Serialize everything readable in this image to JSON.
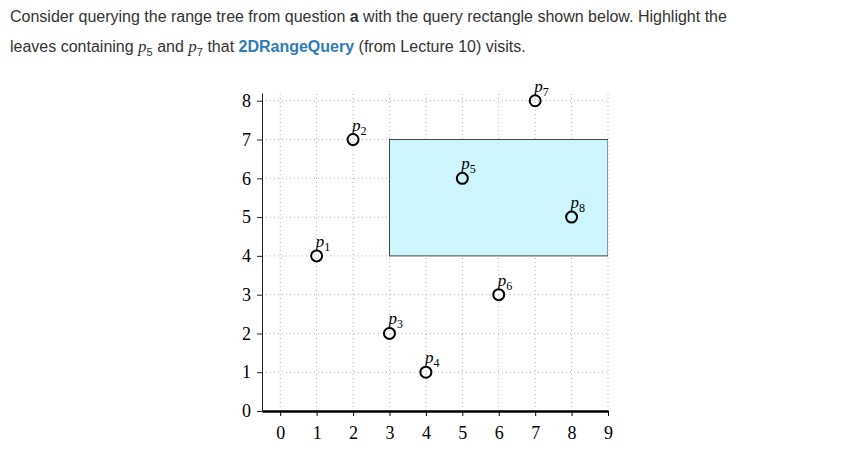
{
  "question": {
    "lines": [
      [
        {
          "text": "Consider querying the range tree from question ",
          "style": "plain"
        },
        {
          "text": "a",
          "style": "bold"
        },
        {
          "text": " with the query rectangle shown below. Highlight the",
          "style": "plain"
        }
      ],
      [
        {
          "text": "leaves containing ",
          "style": "plain"
        },
        {
          "text": "p5",
          "style": "math"
        },
        {
          "text": " and ",
          "style": "plain"
        },
        {
          "text": "p7",
          "style": "math"
        },
        {
          "text": " that ",
          "style": "plain"
        },
        {
          "text": "2DRangeQuery",
          "style": "link"
        },
        {
          "text": " (from Lecture 10) visits.",
          "style": "plain"
        }
      ]
    ]
  },
  "chart_data": {
    "type": "scatter",
    "x": [
      1,
      2,
      3,
      4,
      5,
      6,
      7,
      8
    ],
    "values": [
      4,
      7,
      2,
      1,
      6,
      3,
      8,
      5
    ],
    "point_labels": [
      "p1",
      "p2",
      "p3",
      "p4",
      "p5",
      "p6",
      "p7",
      "p8"
    ],
    "marker": "circle",
    "color": "#000000",
    "xlim": [
      -0.5,
      9
    ],
    "ylim": [
      0,
      8.2
    ],
    "xticks": [
      0,
      1,
      2,
      3,
      4,
      5,
      6,
      7,
      8,
      9
    ],
    "yticks": [
      0,
      1,
      2,
      3,
      4,
      5,
      6,
      7,
      8
    ],
    "grid": true,
    "query_rect": {
      "x": [
        3,
        9
      ],
      "y": [
        4,
        7
      ],
      "color": "#ccf5fc"
    }
  }
}
